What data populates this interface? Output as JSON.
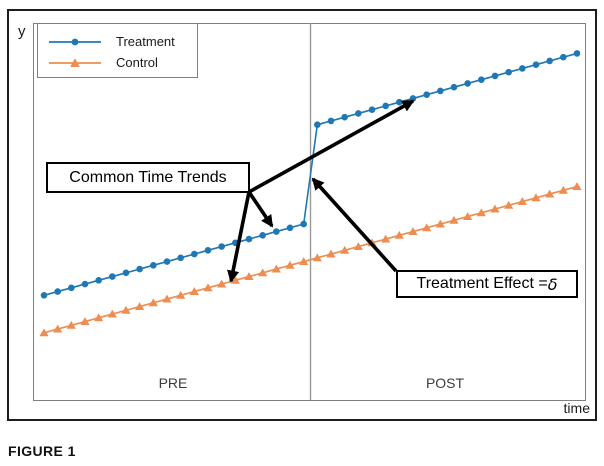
{
  "figure": {
    "caption": "FIGURE 1"
  },
  "axes": {
    "y_label": "y",
    "x_label": "time"
  },
  "periods": {
    "pre": "PRE",
    "post": "POST"
  },
  "legend": {
    "items": [
      {
        "label": "Treatment",
        "marker": "circle",
        "color": "#1f77b4"
      },
      {
        "label": "Control",
        "marker": "triangle",
        "color": "#ec8d51"
      }
    ]
  },
  "annotations": {
    "common_trends": {
      "label": "Common Time Trends"
    },
    "treatment_effect": {
      "label_prefix": "Treatment Effect = ",
      "delta": "δ"
    }
  },
  "colors": {
    "treatment": "#1f77b4",
    "control": "#ec8d51",
    "divider": "#9a9a9a",
    "arrow": "#000000",
    "frame_border": "#1d1d1d",
    "plot_border": "#7f7f7f"
  },
  "chart_data": {
    "type": "line",
    "title": "",
    "xlabel": "time",
    "ylabel": "y",
    "grid": false,
    "legend_position": "top-left",
    "x": [
      0,
      1,
      2,
      3,
      4,
      5,
      6,
      7,
      8,
      9,
      10,
      11,
      12,
      13,
      14,
      15,
      16,
      17,
      18,
      19,
      20,
      21,
      22,
      23,
      24,
      25,
      26,
      27,
      28,
      29,
      30,
      31,
      32,
      33,
      34,
      35,
      36,
      37,
      38,
      39
    ],
    "series": [
      {
        "name": "Treatment",
        "color": "#1f77b4",
        "marker": "circle",
        "y": [
          3.0,
          3.1,
          3.2,
          3.3,
          3.4,
          3.5,
          3.6,
          3.7,
          3.8,
          3.9,
          4.0,
          4.1,
          4.2,
          4.3,
          4.4,
          4.5,
          4.6,
          4.7,
          4.8,
          4.9,
          7.55,
          7.65,
          7.75,
          7.85,
          7.95,
          8.05,
          8.15,
          8.25,
          8.35,
          8.45,
          8.55,
          8.65,
          8.75,
          8.85,
          8.95,
          9.05,
          9.15,
          9.25,
          9.35,
          9.45
        ]
      },
      {
        "name": "Control",
        "color": "#ec8d51",
        "marker": "triangle",
        "y": [
          2.0,
          2.1,
          2.2,
          2.3,
          2.4,
          2.5,
          2.6,
          2.7,
          2.8,
          2.9,
          3.0,
          3.1,
          3.2,
          3.3,
          3.4,
          3.5,
          3.6,
          3.7,
          3.8,
          3.9,
          4.0,
          4.1,
          4.2,
          4.3,
          4.4,
          4.5,
          4.6,
          4.7,
          4.8,
          4.9,
          5.0,
          5.1,
          5.2,
          5.3,
          5.4,
          5.5,
          5.6,
          5.7,
          5.8,
          5.9
        ]
      }
    ],
    "divider_x": 19.5,
    "pre_period": [
      0,
      19
    ],
    "post_period": [
      20,
      39
    ],
    "treatment_effect_delta": 2.55,
    "ylim": [
      0.2,
      10.3
    ],
    "axis_ticks": "none"
  }
}
